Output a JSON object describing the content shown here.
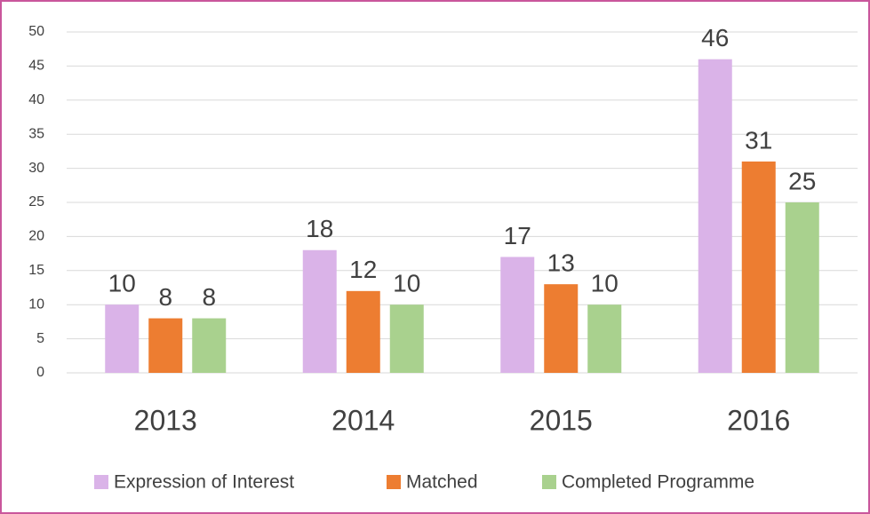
{
  "chart_data": {
    "type": "bar",
    "categories": [
      "2013",
      "2014",
      "2015",
      "2016"
    ],
    "series": [
      {
        "name": "Expression of Interest",
        "color": "#dab3e8",
        "values": [
          10,
          18,
          17,
          46
        ]
      },
      {
        "name": "Matched",
        "color": "#ed7d31",
        "values": [
          8,
          12,
          13,
          31
        ]
      },
      {
        "name": "Completed Programme",
        "color": "#a9d18e",
        "values": [
          8,
          10,
          10,
          25
        ]
      }
    ],
    "ylim": [
      0,
      50
    ],
    "yticks": [
      0,
      5,
      10,
      15,
      20,
      25,
      30,
      35,
      40,
      45,
      50
    ],
    "grid": true,
    "legend": "bottom"
  }
}
